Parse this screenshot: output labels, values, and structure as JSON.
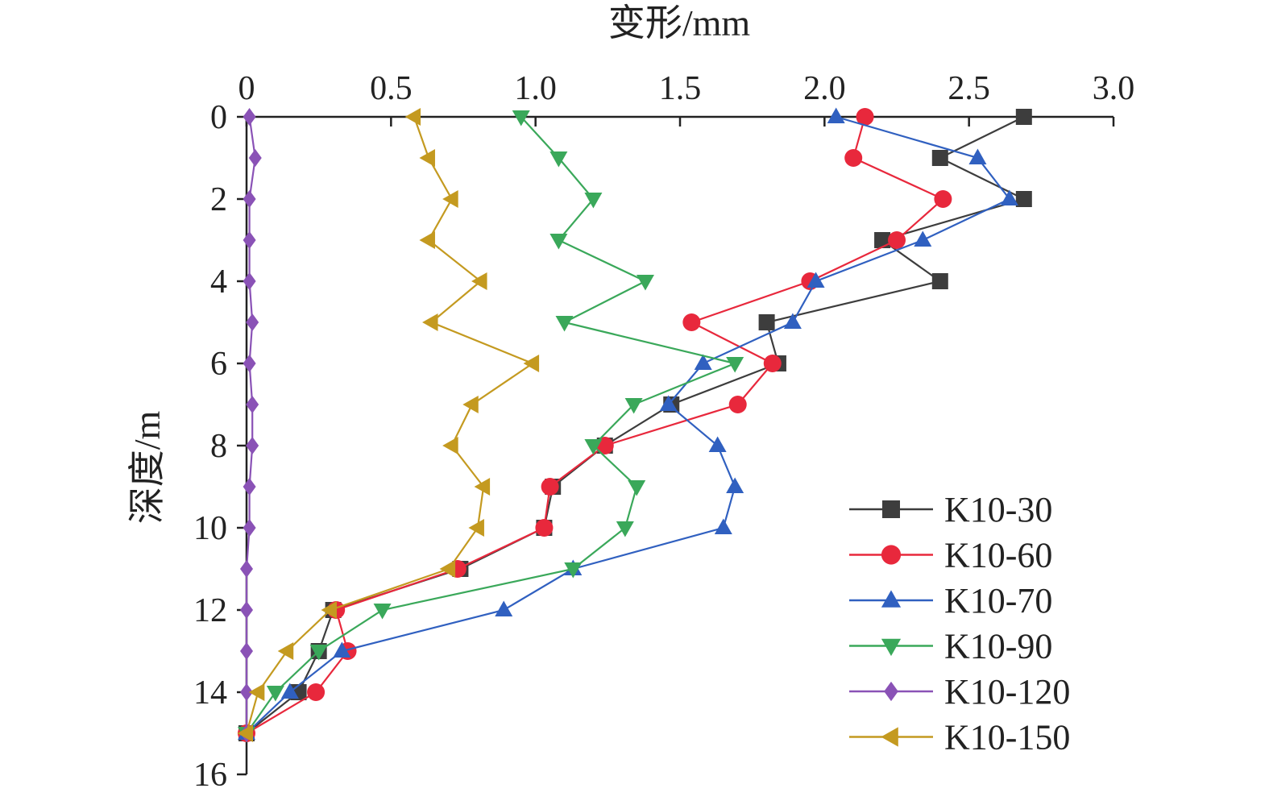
{
  "chart_data": {
    "type": "line",
    "xlabel": "变形/mm",
    "ylabel": "深度/m",
    "xlim": [
      0,
      3.0
    ],
    "ylim": [
      0,
      16
    ],
    "x_axis_position": "top",
    "y_axis_inverted": true,
    "x_ticks": [
      "0",
      "0.5",
      "1.0",
      "1.5",
      "2.0",
      "2.5",
      "3.0"
    ],
    "y_ticks": [
      "0",
      "2",
      "4",
      "6",
      "8",
      "10",
      "12",
      "14",
      "16"
    ],
    "grid": false,
    "legend_position": "bottom-right",
    "depth": [
      0,
      1,
      2,
      3,
      4,
      5,
      6,
      7,
      8,
      9,
      10,
      11,
      12,
      13,
      14,
      15
    ],
    "series": [
      {
        "name": "K10-30",
        "marker": "square",
        "color": "#3d3d3d",
        "values": [
          2.69,
          2.4,
          2.69,
          2.2,
          2.4,
          1.8,
          1.84,
          1.47,
          1.24,
          1.06,
          1.03,
          0.74,
          0.3,
          0.25,
          0.18,
          0.0
        ]
      },
      {
        "name": "K10-60",
        "marker": "circle",
        "color": "#e8283c",
        "values": [
          2.14,
          2.1,
          2.41,
          2.25,
          1.95,
          1.54,
          1.82,
          1.7,
          1.24,
          1.05,
          1.03,
          0.73,
          0.31,
          0.35,
          0.24,
          0.0
        ]
      },
      {
        "name": "K10-70",
        "marker": "triangle-up",
        "color": "#3060c0",
        "values": [
          2.04,
          2.53,
          2.64,
          2.34,
          1.97,
          1.89,
          1.58,
          1.46,
          1.63,
          1.69,
          1.65,
          1.13,
          0.89,
          0.33,
          0.15,
          0.0
        ]
      },
      {
        "name": "K10-90",
        "marker": "triangle-down",
        "color": "#3aa85a",
        "values": [
          0.95,
          1.08,
          1.2,
          1.08,
          1.38,
          1.1,
          1.69,
          1.34,
          1.2,
          1.35,
          1.31,
          1.13,
          0.47,
          0.25,
          0.1,
          0.0
        ]
      },
      {
        "name": "K10-120",
        "marker": "diamond",
        "color": "#8a52b6",
        "values": [
          0.01,
          0.03,
          0.01,
          0.01,
          0.01,
          0.02,
          0.01,
          0.02,
          0.02,
          0.01,
          0.01,
          0.0,
          0.0,
          0.0,
          0.0,
          0.0
        ]
      },
      {
        "name": "K10-150",
        "marker": "triangle-left",
        "color": "#c49a20",
        "values": [
          0.58,
          0.63,
          0.71,
          0.63,
          0.81,
          0.64,
          0.99,
          0.78,
          0.71,
          0.82,
          0.8,
          0.7,
          0.29,
          0.14,
          0.04,
          0.0
        ]
      }
    ]
  }
}
